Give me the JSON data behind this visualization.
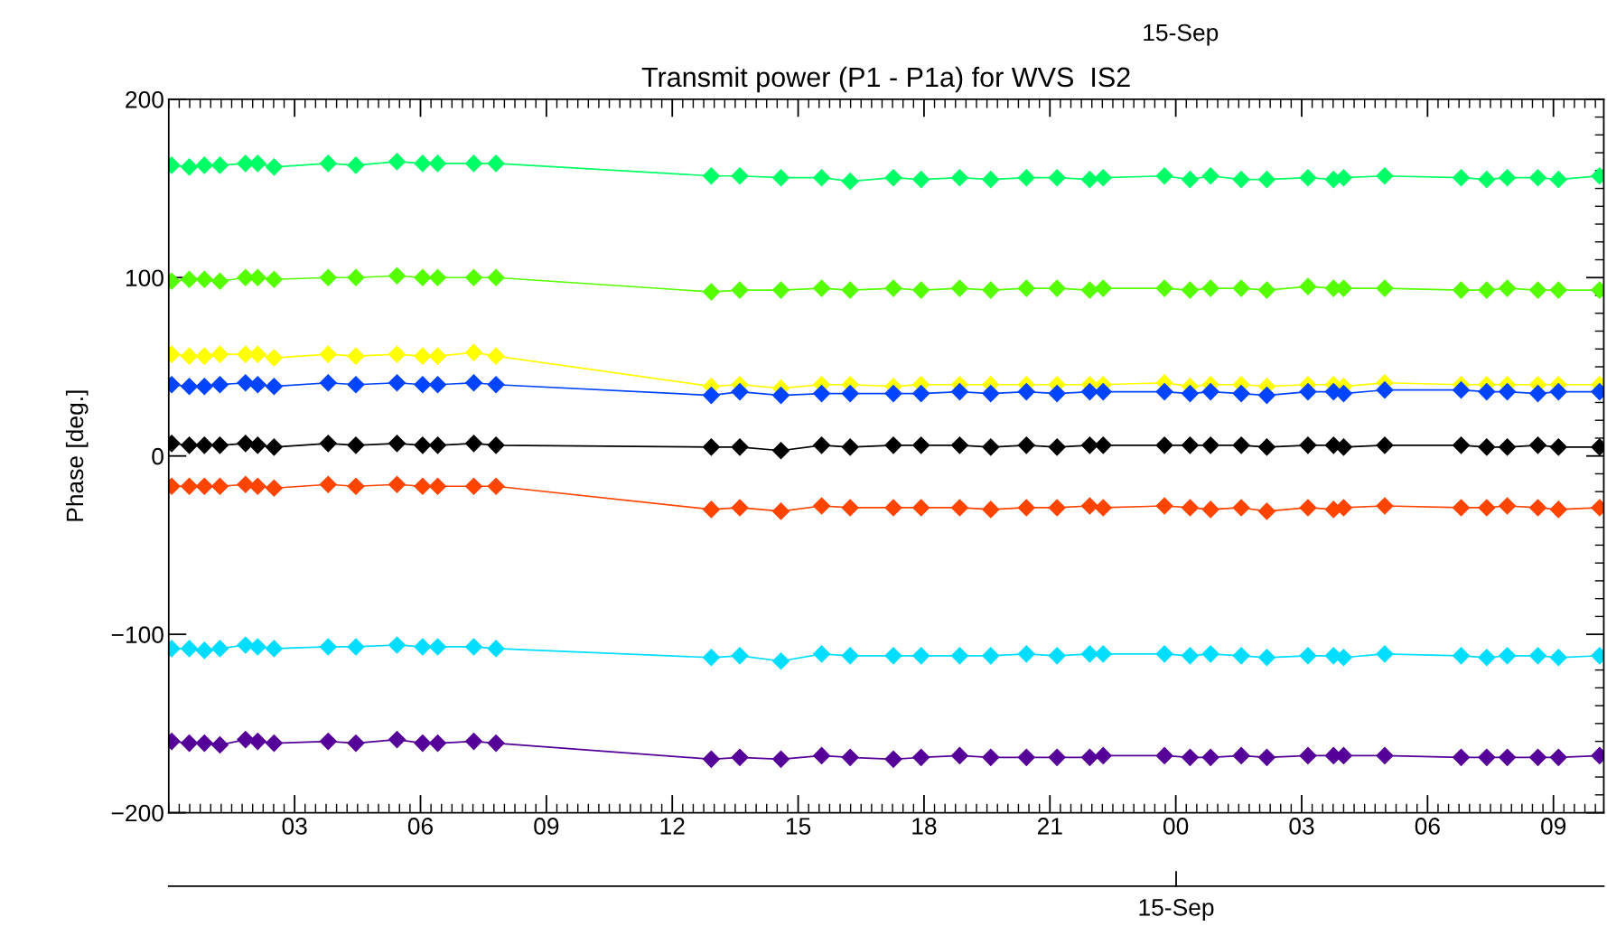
{
  "chart_data": {
    "type": "line",
    "title": "Transmit power (P1 - P1a) for WVS  IS2",
    "ylabel": "Phase [deg.]",
    "annotations": [
      "15-Sep",
      "15-Sep"
    ],
    "x": [
      0.07,
      0.49,
      0.85,
      1.22,
      1.83,
      2.12,
      2.51,
      3.8,
      4.46,
      5.44,
      6.05,
      6.41,
      7.27,
      7.8,
      12.93,
      13.61,
      14.59,
      15.56,
      16.24,
      17.27,
      17.93,
      18.85,
      19.59,
      20.44,
      21.17,
      21.95,
      22.27,
      23.73,
      24.34,
      24.83,
      25.56,
      26.17,
      27.15,
      27.76,
      28.0,
      28.98,
      30.8,
      31.41,
      31.9,
      32.63,
      33.12,
      34.1
    ],
    "series": [
      {
        "color": "#00ff66",
        "values": [
          163,
          162,
          163,
          163,
          164,
          164,
          162,
          164,
          163,
          165,
          164,
          164,
          164,
          164,
          157,
          157,
          156,
          156,
          154,
          156,
          155,
          156,
          155,
          156,
          156,
          155,
          156,
          157,
          155,
          157,
          155,
          155,
          156,
          155,
          156,
          157,
          156,
          155,
          156,
          156,
          155,
          157
        ]
      },
      {
        "color": "#55ff00",
        "values": [
          98,
          99,
          99,
          98,
          100,
          100,
          99,
          100,
          100,
          101,
          100,
          100,
          100,
          100,
          92,
          93,
          93,
          94,
          93,
          94,
          93,
          94,
          93,
          94,
          94,
          93,
          94,
          94,
          93,
          94,
          94,
          93,
          95,
          94,
          94,
          94,
          93,
          93,
          94,
          93,
          93,
          93
        ]
      },
      {
        "color": "#ffff00",
        "values": [
          57,
          56,
          56,
          57,
          57,
          57,
          55,
          57,
          56,
          57,
          56,
          56,
          58,
          56,
          39,
          40,
          38,
          40,
          40,
          39,
          40,
          40,
          40,
          40,
          40,
          40,
          40,
          41,
          39,
          40,
          40,
          39,
          40,
          40,
          39,
          41,
          40,
          40,
          40,
          40,
          40,
          40
        ]
      },
      {
        "color": "#0044ff",
        "values": [
          40,
          39,
          39,
          40,
          41,
          40,
          39,
          41,
          40,
          41,
          40,
          40,
          41,
          40,
          34,
          36,
          34,
          35,
          35,
          35,
          35,
          36,
          35,
          36,
          35,
          36,
          36,
          36,
          35,
          36,
          35,
          34,
          36,
          36,
          35,
          37,
          37,
          36,
          36,
          35,
          36,
          36
        ]
      },
      {
        "color": "#000000",
        "values": [
          7,
          6,
          6,
          6,
          7,
          6,
          5,
          7,
          6,
          7,
          6,
          6,
          7,
          6,
          5,
          5,
          3,
          6,
          5,
          6,
          6,
          6,
          5,
          6,
          5,
          6,
          6,
          6,
          6,
          6,
          6,
          5,
          6,
          6,
          5,
          6,
          6,
          5,
          5,
          6,
          5,
          5
        ]
      },
      {
        "color": "#ff4400",
        "values": [
          -17,
          -17,
          -17,
          -17,
          -16,
          -17,
          -18,
          -16,
          -17,
          -16,
          -17,
          -17,
          -17,
          -17,
          -30,
          -29,
          -31,
          -28,
          -29,
          -29,
          -29,
          -29,
          -30,
          -29,
          -29,
          -28,
          -29,
          -28,
          -29,
          -30,
          -29,
          -31,
          -29,
          -30,
          -29,
          -28,
          -29,
          -29,
          -28,
          -29,
          -30,
          -29
        ]
      },
      {
        "color": "#00ddff",
        "values": [
          -108,
          -108,
          -109,
          -108,
          -106,
          -107,
          -108,
          -107,
          -107,
          -106,
          -107,
          -107,
          -107,
          -108,
          -113,
          -112,
          -115,
          -111,
          -112,
          -112,
          -112,
          -112,
          -112,
          -111,
          -112,
          -111,
          -111,
          -111,
          -112,
          -111,
          -112,
          -113,
          -112,
          -112,
          -113,
          -111,
          -112,
          -113,
          -112,
          -112,
          -113,
          -112
        ]
      },
      {
        "color": "#550099",
        "values": [
          -160,
          -161,
          -161,
          -162,
          -159,
          -160,
          -161,
          -160,
          -161,
          -159,
          -161,
          -161,
          -160,
          -161,
          -170,
          -169,
          -170,
          -168,
          -169,
          -170,
          -169,
          -168,
          -169,
          -169,
          -169,
          -169,
          -168,
          -168,
          -169,
          -169,
          -168,
          -169,
          -168,
          -168,
          -168,
          -168,
          -169,
          -169,
          -169,
          -169,
          -169,
          -168
        ]
      }
    ],
    "marker": "diamond",
    "line_style": "solid",
    "grid": false,
    "legend": false,
    "xlim": [
      0,
      34.2
    ],
    "xticks": [
      {
        "value": 3,
        "label": "03"
      },
      {
        "value": 6,
        "label": "06"
      },
      {
        "value": 9,
        "label": "09"
      },
      {
        "value": 12,
        "label": "12"
      },
      {
        "value": 15,
        "label": "15"
      },
      {
        "value": 18,
        "label": "18"
      },
      {
        "value": 21,
        "label": "21"
      },
      {
        "value": 24,
        "label": "00"
      },
      {
        "value": 27,
        "label": "03"
      },
      {
        "value": 30,
        "label": "06"
      },
      {
        "value": 33,
        "label": "09"
      }
    ],
    "ylim": [
      -200,
      200
    ],
    "yticks": [
      200,
      100,
      0,
      {
        "value": -100,
        "label": "−100"
      },
      {
        "value": -200,
        "label": "−200"
      }
    ]
  }
}
